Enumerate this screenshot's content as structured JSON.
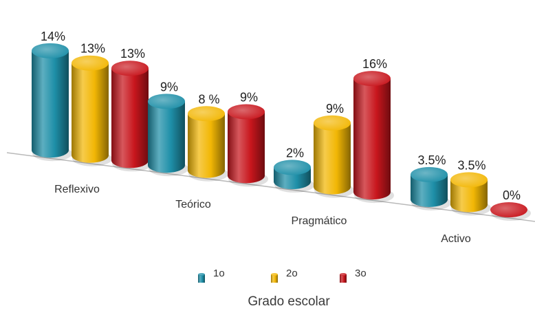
{
  "chart_data": {
    "type": "bar",
    "style": "3d-cylinder",
    "categories": [
      "Reflexivo",
      "Teórico",
      "Pragmático",
      "Activo"
    ],
    "series": [
      {
        "name": "1o",
        "color": "#1E8FA8",
        "values": [
          14,
          9,
          2,
          3.5
        ],
        "labels": [
          "14%",
          "9%",
          "2%",
          "3.5%"
        ]
      },
      {
        "name": "2o",
        "color": "#F2B705",
        "values": [
          13,
          8,
          9,
          3.5
        ],
        "labels": [
          "13%",
          "8 %",
          "9%",
          "3.5%"
        ]
      },
      {
        "name": "3o",
        "color": "#C8161D",
        "values": [
          13,
          9,
          16,
          0
        ],
        "labels": [
          "13%",
          "9%",
          "16%",
          "0%"
        ]
      }
    ],
    "legend_title": "Grado escolar",
    "legend_position": "bottom",
    "grid": false,
    "ylim": [
      0,
      16
    ]
  }
}
